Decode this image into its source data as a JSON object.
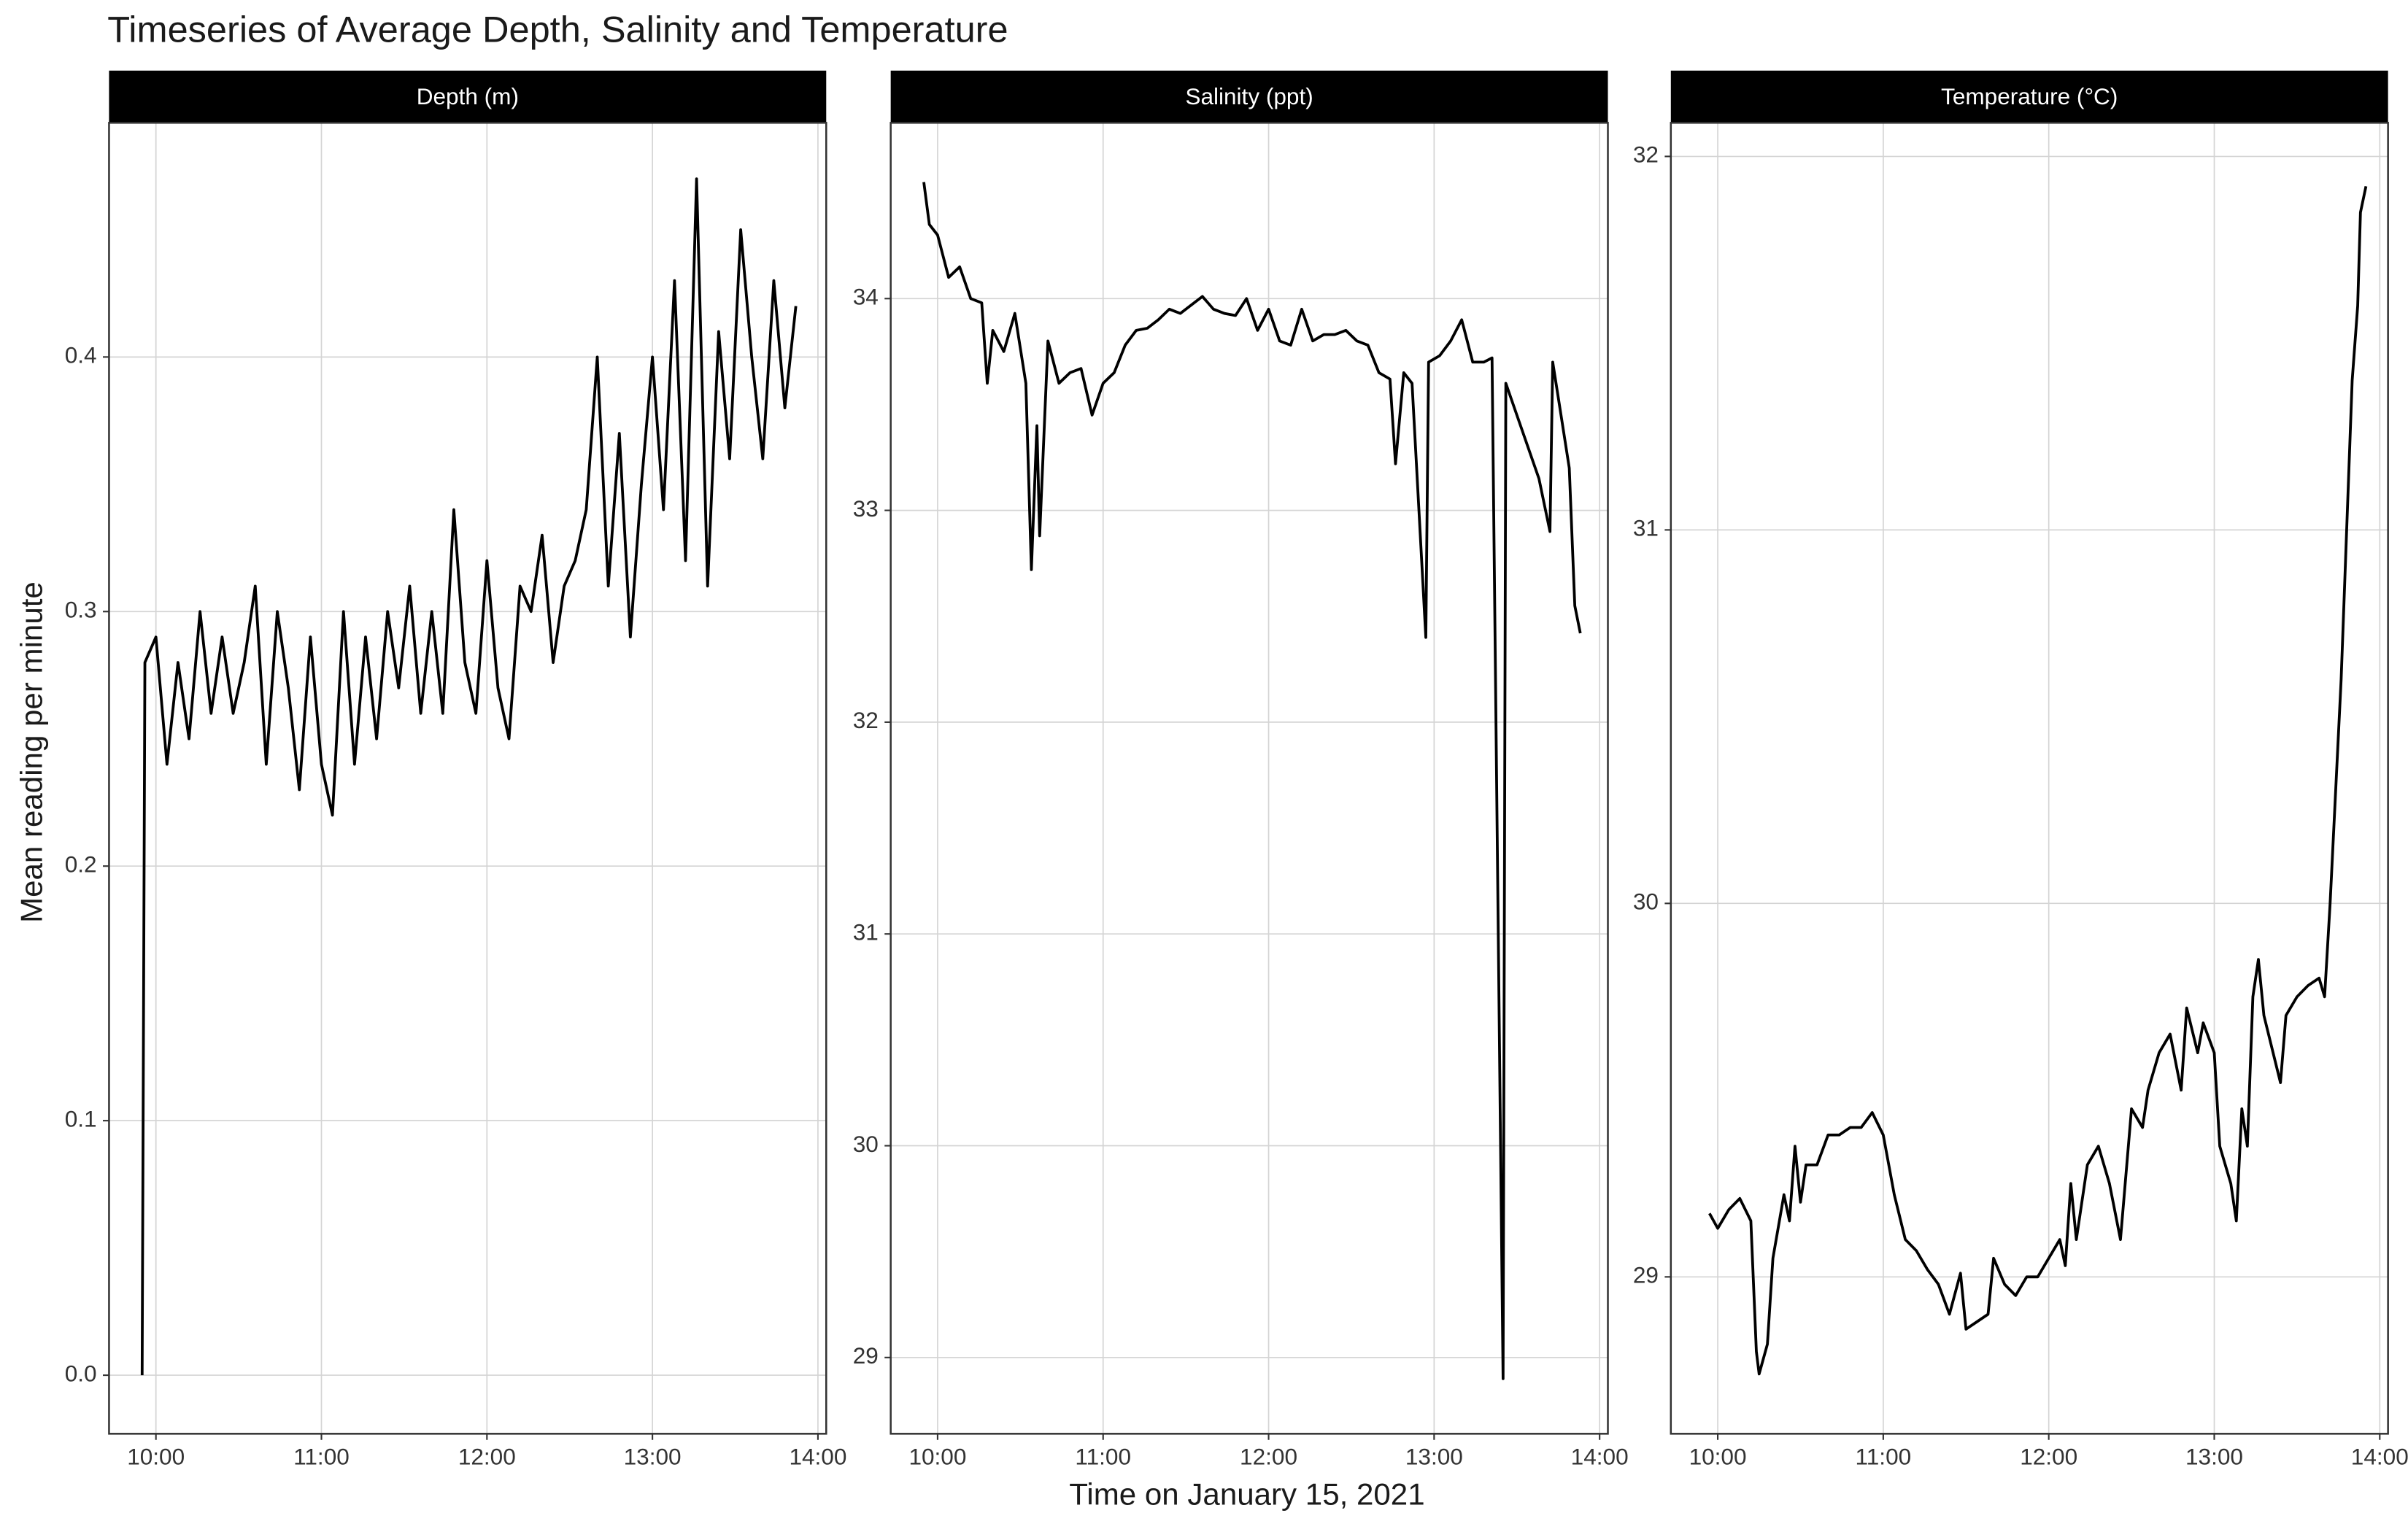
{
  "title": "Timeseries of Average Depth, Salinity and Temperature",
  "x_label": "Time on January 15, 2021",
  "y_label": "Mean reading per minute",
  "chart_data": [
    {
      "type": "line",
      "title": "Depth (m)",
      "color": "#000000",
      "grid": true,
      "x": [
        "09:55",
        "09:56",
        "10:00",
        "10:04",
        "10:08",
        "10:12",
        "10:16",
        "10:20",
        "10:24",
        "10:28",
        "10:32",
        "10:36",
        "10:40",
        "10:44",
        "10:48",
        "10:52",
        "10:56",
        "11:00",
        "11:04",
        "11:08",
        "11:12",
        "11:16",
        "11:20",
        "11:24",
        "11:28",
        "11:32",
        "11:36",
        "11:40",
        "11:44",
        "11:48",
        "11:52",
        "11:56",
        "12:00",
        "12:04",
        "12:08",
        "12:12",
        "12:16",
        "12:20",
        "12:24",
        "12:28",
        "12:32",
        "12:36",
        "12:40",
        "12:44",
        "12:48",
        "12:52",
        "12:56",
        "13:00",
        "13:04",
        "13:08",
        "13:12",
        "13:16",
        "13:20",
        "13:24",
        "13:28",
        "13:32",
        "13:36",
        "13:40",
        "13:44",
        "13:48",
        "13:52"
      ],
      "values": [
        0.0,
        0.28,
        0.29,
        0.24,
        0.28,
        0.25,
        0.3,
        0.26,
        0.29,
        0.26,
        0.28,
        0.31,
        0.24,
        0.3,
        0.27,
        0.23,
        0.29,
        0.24,
        0.22,
        0.3,
        0.24,
        0.29,
        0.25,
        0.3,
        0.27,
        0.31,
        0.26,
        0.3,
        0.26,
        0.34,
        0.28,
        0.26,
        0.32,
        0.27,
        0.25,
        0.31,
        0.3,
        0.33,
        0.28,
        0.31,
        0.32,
        0.34,
        0.4,
        0.31,
        0.37,
        0.29,
        0.35,
        0.4,
        0.34,
        0.43,
        0.32,
        0.47,
        0.31,
        0.41,
        0.36,
        0.45,
        0.4,
        0.36,
        0.43,
        0.38,
        0.42
      ],
      "xlim": [
        "09:43",
        "14:03"
      ],
      "xticks": [
        "10:00",
        "11:00",
        "12:00",
        "13:00",
        "14:00"
      ],
      "ylim": [
        -0.023,
        0.492
      ],
      "yticks": [
        {
          "value": 0,
          "label": "0.0"
        },
        0.1,
        0.2,
        0.3,
        0.4
      ]
    },
    {
      "type": "line",
      "title": "Salinity (ppt)",
      "color": "#000000",
      "grid": true,
      "x": [
        "09:55",
        "09:57",
        "10:00",
        "10:04",
        "10:08",
        "10:12",
        "10:16",
        "10:18",
        "10:20",
        "10:24",
        "10:28",
        "10:32",
        "10:34",
        "10:36",
        "10:37",
        "10:40",
        "10:44",
        "10:48",
        "10:52",
        "10:56",
        "11:00",
        "11:04",
        "11:08",
        "11:12",
        "11:16",
        "11:20",
        "11:24",
        "11:28",
        "11:32",
        "11:36",
        "11:40",
        "11:44",
        "11:48",
        "11:52",
        "11:56",
        "12:00",
        "12:04",
        "12:08",
        "12:12",
        "12:16",
        "12:20",
        "12:24",
        "12:28",
        "12:32",
        "12:36",
        "12:40",
        "12:44",
        "12:46",
        "12:49",
        "12:52",
        "12:57",
        "12:58",
        "13:02",
        "13:06",
        "13:10",
        "13:14",
        "13:18",
        "13:21",
        "13:25",
        "13:26",
        "13:30",
        "13:34",
        "13:38",
        "13:42",
        "13:43",
        "13:46",
        "13:49",
        "13:51",
        "13:53"
      ],
      "values": [
        34.55,
        34.35,
        34.3,
        34.1,
        34.15,
        34.0,
        33.98,
        33.6,
        33.85,
        33.75,
        33.93,
        33.6,
        32.72,
        33.4,
        32.88,
        33.8,
        33.6,
        33.65,
        33.67,
        33.45,
        33.6,
        33.65,
        33.78,
        33.85,
        33.86,
        33.9,
        33.95,
        33.93,
        33.97,
        34.01,
        33.95,
        33.93,
        33.92,
        34.0,
        33.85,
        33.95,
        33.8,
        33.78,
        33.95,
        33.8,
        33.83,
        33.83,
        33.85,
        33.8,
        33.78,
        33.65,
        33.62,
        33.22,
        33.65,
        33.6,
        32.4,
        33.7,
        33.73,
        33.8,
        33.9,
        33.7,
        33.7,
        33.72,
        28.9,
        33.6,
        33.45,
        33.3,
        33.15,
        32.9,
        33.7,
        33.45,
        33.2,
        32.55,
        32.42
      ],
      "xlim": [
        "09:43",
        "14:03"
      ],
      "xticks": [
        "10:00",
        "11:00",
        "12:00",
        "13:00",
        "14:00"
      ],
      "ylim": [
        28.64,
        34.83
      ],
      "yticks": [
        29,
        30,
        31,
        32,
        33,
        34
      ]
    },
    {
      "type": "line",
      "title": "Temperature (°C)",
      "color": "#000000",
      "grid": true,
      "x": [
        "09:57",
        "10:00",
        "10:04",
        "10:08",
        "10:12",
        "10:14",
        "10:15",
        "10:18",
        "10:20",
        "10:24",
        "10:26",
        "10:28",
        "10:30",
        "10:32",
        "10:36",
        "10:40",
        "10:44",
        "10:48",
        "10:52",
        "10:56",
        "11:00",
        "11:04",
        "11:08",
        "11:12",
        "11:16",
        "11:20",
        "11:24",
        "11:28",
        "11:30",
        "11:34",
        "11:38",
        "11:40",
        "11:44",
        "11:48",
        "11:52",
        "11:56",
        "12:00",
        "12:04",
        "12:06",
        "12:08",
        "12:10",
        "12:14",
        "12:18",
        "12:22",
        "12:26",
        "12:30",
        "12:34",
        "12:36",
        "12:40",
        "12:44",
        "12:48",
        "12:50",
        "12:54",
        "12:56",
        "13:00",
        "13:02",
        "13:06",
        "13:08",
        "13:10",
        "13:12",
        "13:14",
        "13:16",
        "13:18",
        "13:22",
        "13:24",
        "13:26",
        "13:30",
        "13:34",
        "13:38",
        "13:40",
        "13:42",
        "13:46",
        "13:48",
        "13:50",
        "13:52",
        "13:53",
        "13:55"
      ],
      "values": [
        29.17,
        29.13,
        29.18,
        29.21,
        29.15,
        28.8,
        28.74,
        28.82,
        29.05,
        29.22,
        29.15,
        29.35,
        29.2,
        29.3,
        29.3,
        29.38,
        29.38,
        29.4,
        29.4,
        29.44,
        29.38,
        29.22,
        29.1,
        29.07,
        29.02,
        28.98,
        28.9,
        29.01,
        28.86,
        28.88,
        28.9,
        29.05,
        28.98,
        28.95,
        29.0,
        29.0,
        29.05,
        29.1,
        29.03,
        29.25,
        29.1,
        29.3,
        29.35,
        29.25,
        29.1,
        29.45,
        29.4,
        29.5,
        29.6,
        29.65,
        29.5,
        29.72,
        29.6,
        29.68,
        29.6,
        29.35,
        29.25,
        29.15,
        29.45,
        29.35,
        29.75,
        29.85,
        29.7,
        29.58,
        29.52,
        29.7,
        29.75,
        29.78,
        29.8,
        29.75,
        30.0,
        30.6,
        31.0,
        31.4,
        31.6,
        31.85,
        31.92
      ],
      "xlim": [
        "09:43",
        "14:03"
      ],
      "xticks": [
        "10:00",
        "11:00",
        "12:00",
        "13:00",
        "14:00"
      ],
      "ylim": [
        28.58,
        32.09
      ],
      "yticks": [
        29,
        30,
        31,
        32
      ]
    }
  ]
}
